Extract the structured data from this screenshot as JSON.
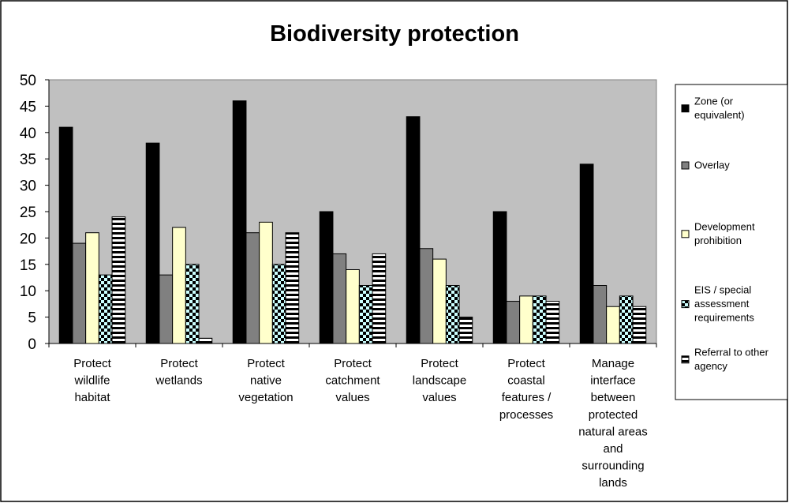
{
  "chart_data": {
    "type": "bar",
    "title": "Biodiversity protection",
    "xlabel": "",
    "ylabel": "",
    "ylim": [
      0,
      50
    ],
    "yticks": [
      "0",
      "5",
      "10",
      "15",
      "20",
      "25",
      "30",
      "35",
      "40",
      "45",
      "50"
    ],
    "grid": false,
    "legend_position": "right",
    "plot_background": "#c0c0c0",
    "categories": [
      [
        "Protect",
        "wildlife",
        "habitat"
      ],
      [
        "Protect",
        "wetlands"
      ],
      [
        "Protect",
        "native",
        "vegetation"
      ],
      [
        "Protect",
        "catchment",
        "values"
      ],
      [
        "Protect",
        "landscape",
        "values"
      ],
      [
        "Protect",
        "coastal",
        "features /",
        "processes"
      ],
      [
        "Manage",
        "interface",
        "between",
        "protected",
        "natural areas",
        "and",
        "surrounding",
        "lands"
      ]
    ],
    "series": [
      {
        "name": "Zone (or equivalent)",
        "legend_lines": [
          "Zone (or",
          "equivalent)"
        ],
        "color": "#000000",
        "pattern": "solid",
        "values": [
          41,
          38,
          46,
          25,
          43,
          25,
          34
        ]
      },
      {
        "name": "Overlay",
        "legend_lines": [
          "Overlay"
        ],
        "color": "#808080",
        "pattern": "solid",
        "values": [
          19,
          13,
          21,
          17,
          18,
          8,
          11
        ]
      },
      {
        "name": "Development prohibition",
        "legend_lines": [
          "Development",
          "prohibition"
        ],
        "color": "#ffffcc",
        "pattern": "solid",
        "values": [
          21,
          22,
          23,
          14,
          16,
          9,
          7
        ]
      },
      {
        "name": "EIS / special assessment requirements",
        "legend_lines": [
          "EIS / special",
          "assessment",
          "requirements"
        ],
        "color": "#ccffff",
        "pattern": "checker",
        "values": [
          13,
          15,
          15,
          11,
          11,
          9,
          9
        ]
      },
      {
        "name": "Referral to other agency",
        "legend_lines": [
          "Referral to other",
          "agency"
        ],
        "color": "#ffffff",
        "pattern": "hstripes",
        "values": [
          24,
          1,
          21,
          17,
          5,
          8,
          7
        ]
      }
    ]
  }
}
